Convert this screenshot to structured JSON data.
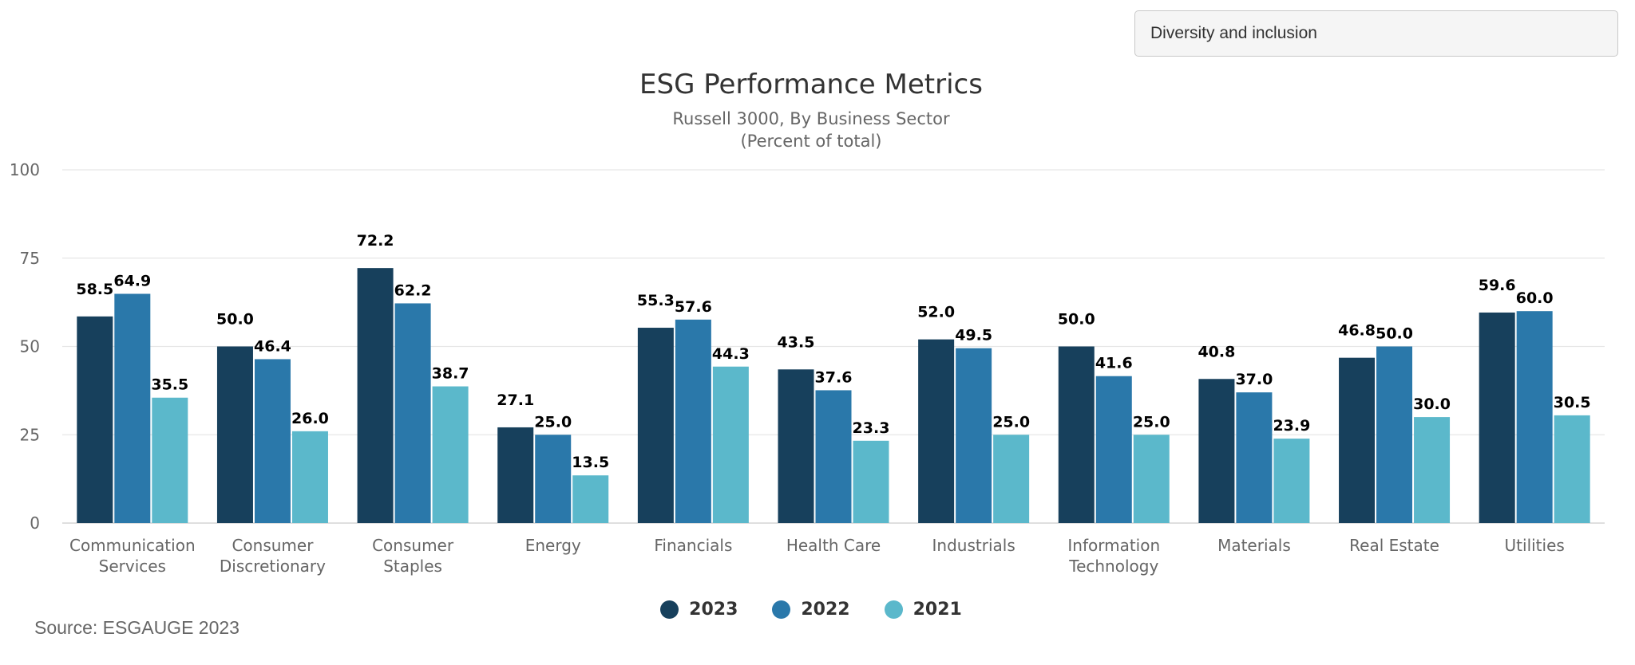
{
  "filter": {
    "selected": "Diversity and inclusion"
  },
  "source": "Source: ESGAUGE 2023",
  "colors": {
    "2023": "#17405c",
    "2022": "#2a78aa",
    "2021": "#5bb8cb",
    "grid": "#e6e6e6",
    "axis_text": "#666666",
    "label_text": "#000000"
  },
  "chart_data": {
    "type": "bar",
    "title": "ESG Performance Metrics",
    "subtitle": [
      "Russell 3000, By Business Sector",
      "(Percent of total)"
    ],
    "xlabel": "",
    "ylabel": "",
    "ylim": [
      0,
      100
    ],
    "yticks": [
      0,
      25,
      50,
      75,
      100
    ],
    "grid": true,
    "legend_position": "bottom",
    "categories": [
      [
        "Communication",
        "Services"
      ],
      [
        "Consumer",
        "Discretionary"
      ],
      [
        "Consumer",
        "Staples"
      ],
      [
        "Energy"
      ],
      [
        "Financials"
      ],
      [
        "Health Care"
      ],
      [
        "Industrials"
      ],
      [
        "Information",
        "Technology"
      ],
      [
        "Materials"
      ],
      [
        "Real Estate"
      ],
      [
        "Utilities"
      ]
    ],
    "series": [
      {
        "name": "2023",
        "values": [
          58.5,
          50.0,
          72.2,
          27.1,
          55.3,
          43.5,
          52.0,
          50.0,
          40.8,
          46.8,
          59.6
        ]
      },
      {
        "name": "2022",
        "values": [
          64.9,
          46.4,
          62.2,
          25.0,
          57.6,
          37.6,
          49.5,
          41.6,
          37.0,
          50.0,
          60.0
        ]
      },
      {
        "name": "2021",
        "values": [
          35.5,
          26.0,
          38.7,
          13.5,
          44.3,
          23.3,
          25.0,
          25.0,
          23.9,
          30.0,
          30.5
        ]
      }
    ],
    "data_labels": [
      [
        "58.5",
        "50.0",
        "72.2",
        "27.1",
        "55.3",
        "43.5",
        "52.0",
        "50.0",
        "40.8",
        "46.8",
        "59.6"
      ],
      [
        "64.9",
        "46.4",
        "62.2",
        "25.0",
        "57.6",
        "37.6",
        "49.5",
        "41.6",
        "37.0",
        "50.0",
        "60.0"
      ],
      [
        "35.5",
        "26.0",
        "38.7",
        "13.5",
        "44.3",
        "23.3",
        "25.0",
        "25.0",
        "23.9",
        "30.0",
        "30.5"
      ]
    ]
  }
}
